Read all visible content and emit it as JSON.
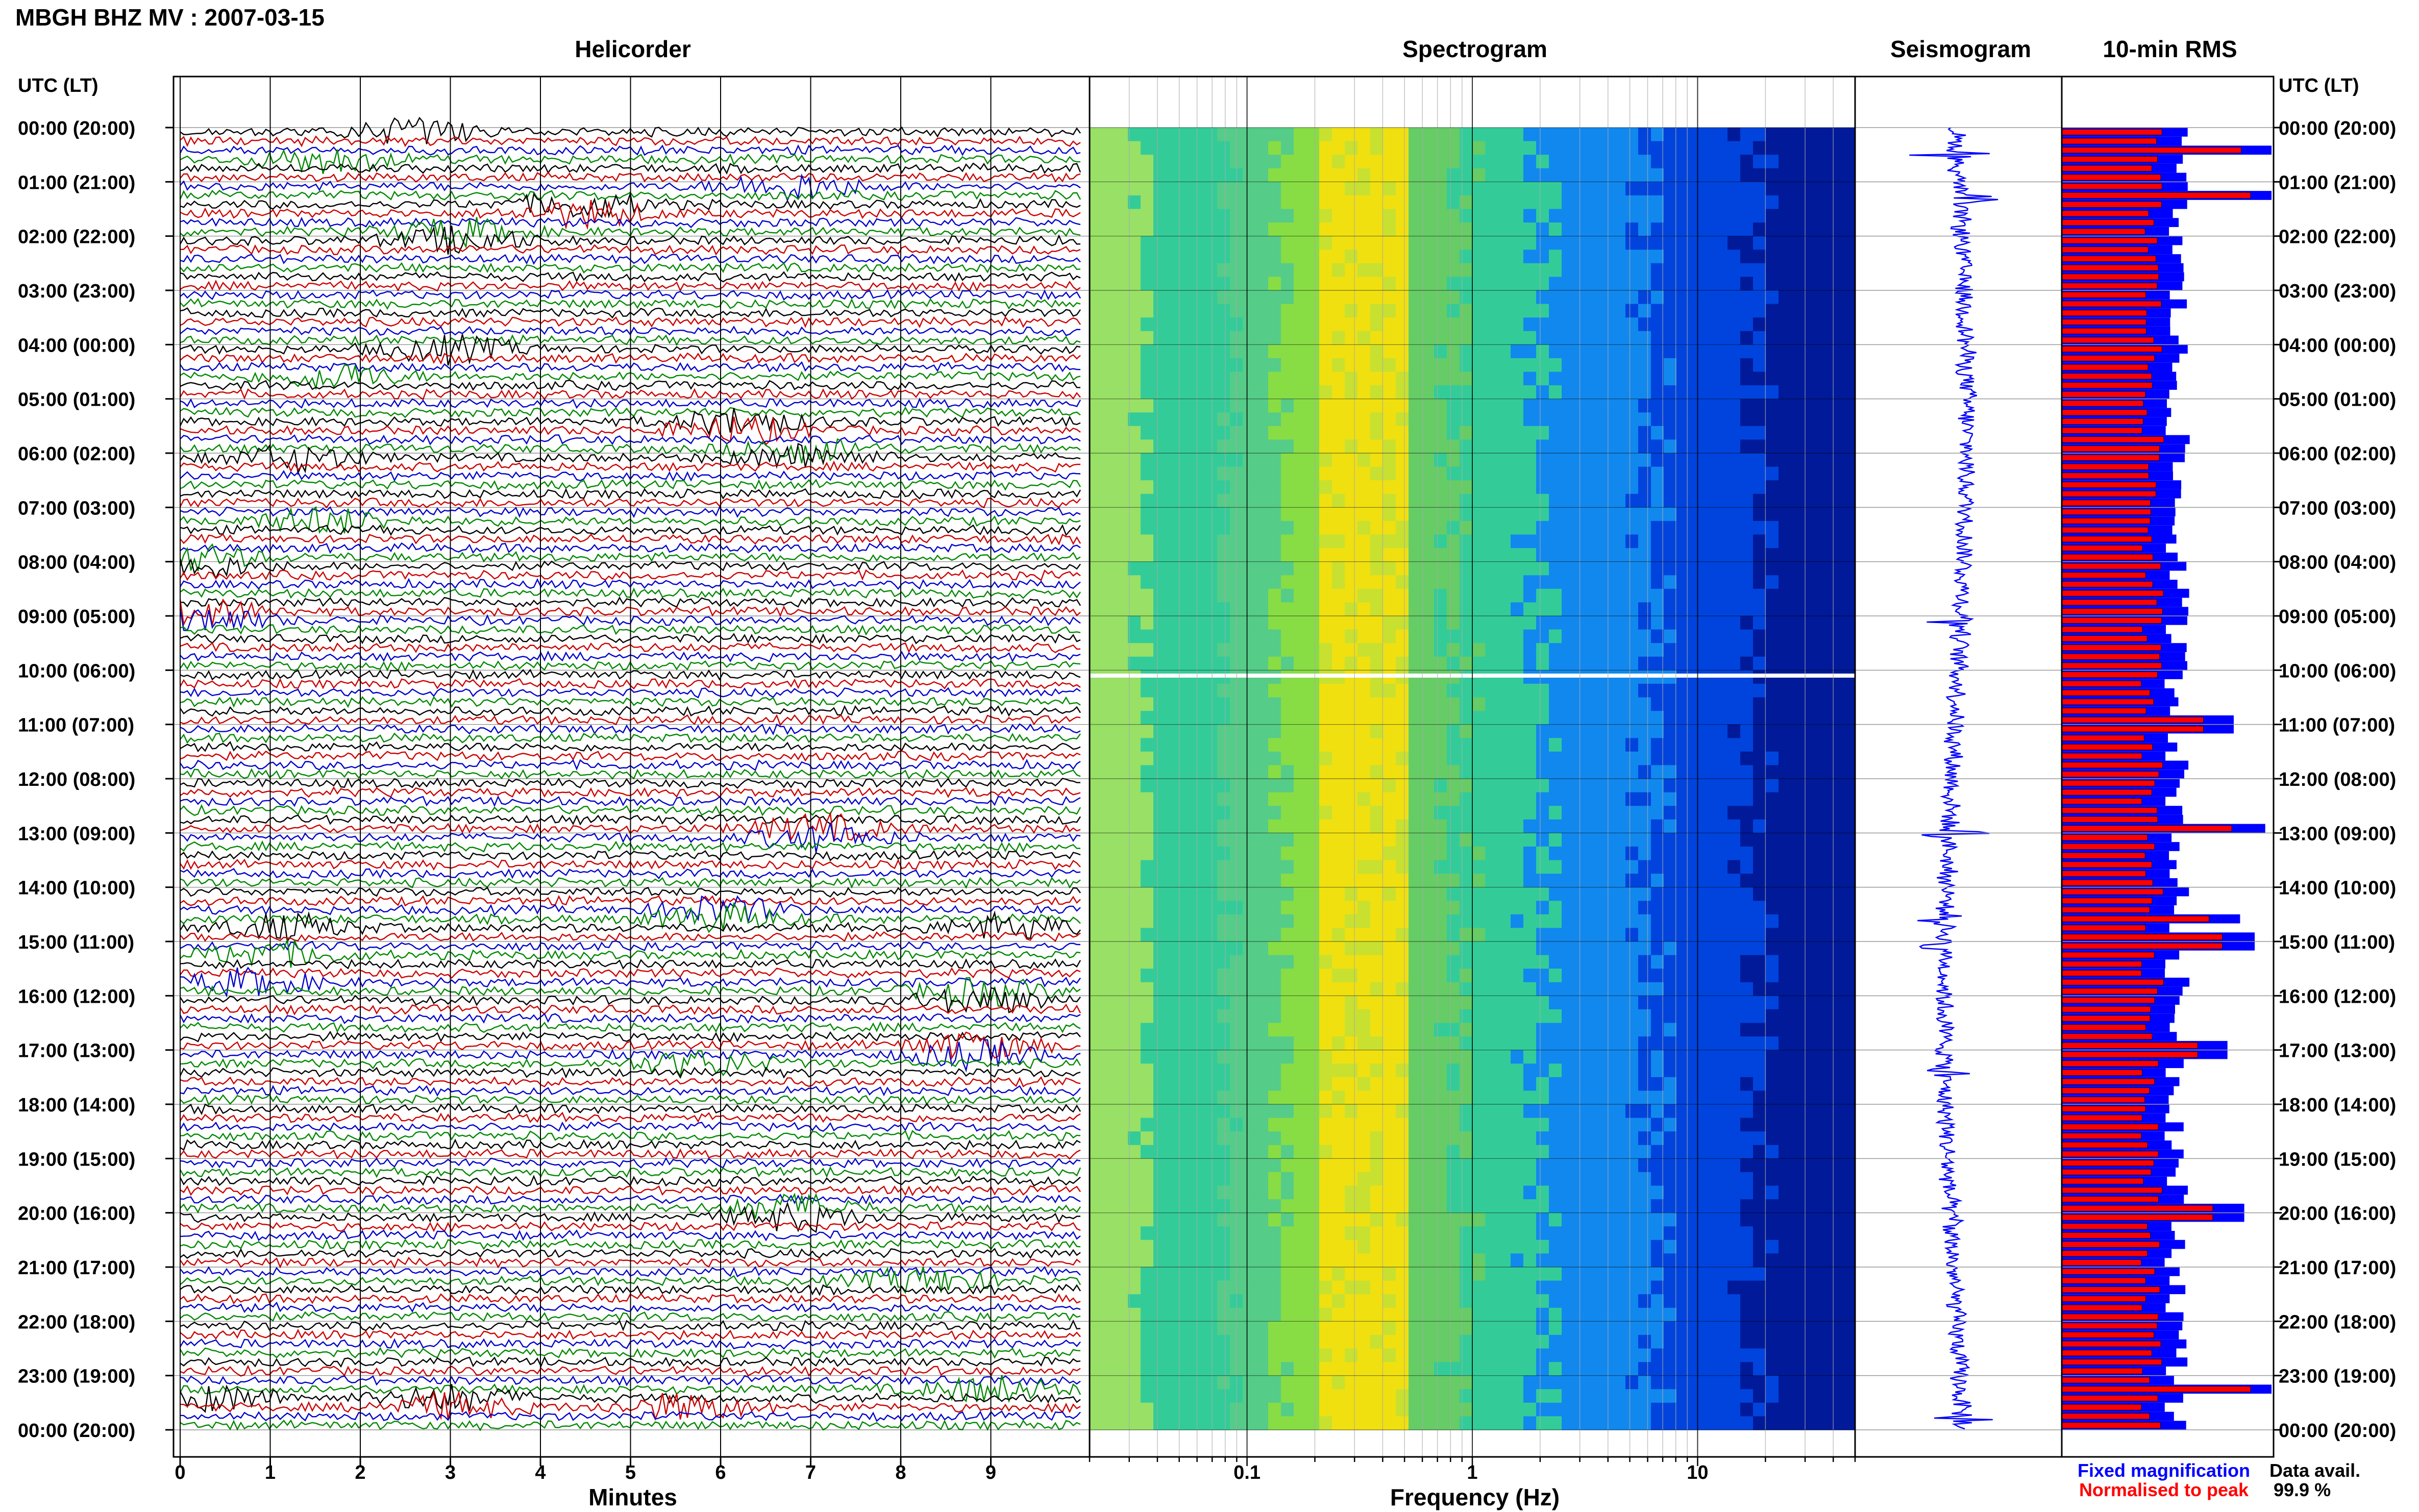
{
  "page_title": "MBGH BHZ MV : 2007-03-15",
  "legend": {
    "fixed": "Fixed magnification",
    "normalised": "Normalised to peak",
    "fixed_color": "#0000ff",
    "normalised_color": "#ff0000",
    "data_avail_label": "Data avail.",
    "data_avail_value": "99.9 %"
  },
  "chart_data": [
    {
      "type": "line",
      "title": "Helicorder",
      "xlabel": "Minutes",
      "ylabel": "UTC (LT)",
      "xlim": [
        0,
        10
      ],
      "x_ticks": [
        "0",
        "1",
        "2",
        "3",
        "4",
        "5",
        "6",
        "7",
        "8",
        "9"
      ],
      "y_ticks": [
        "00:00 (20:00)",
        "01:00 (21:00)",
        "02:00 (22:00)",
        "03:00 (23:00)",
        "04:00 (00:00)",
        "05:00 (01:00)",
        "06:00 (02:00)",
        "07:00 (03:00)",
        "08:00 (04:00)",
        "09:00 (05:00)",
        "10:00 (06:00)",
        "11:00 (07:00)",
        "12:00 (08:00)",
        "13:00 (09:00)",
        "14:00 (10:00)",
        "15:00 (11:00)",
        "16:00 (12:00)",
        "17:00 (13:00)",
        "18:00 (14:00)",
        "19:00 (15:00)",
        "20:00 (16:00)",
        "21:00 (17:00)",
        "22:00 (18:00)",
        "23:00 (19:00)",
        "00:00 (20:00)"
      ],
      "trace_colors": [
        "#000000",
        "#cc0000",
        "#0000cc",
        "#008800"
      ],
      "events": [
        {
          "hour": 0.6,
          "minute": 1.6,
          "color": "#000000"
        },
        {
          "hour": 0.1,
          "minute": 2.6,
          "color": "#cc0000"
        },
        {
          "hour": 1.1,
          "minute": 6.8,
          "color": "#008800"
        },
        {
          "hour": 1.5,
          "minute": 4.5,
          "color": "#cc0000"
        },
        {
          "hour": 2.0,
          "minute": 3.1,
          "color": "#000000"
        },
        {
          "hour": 4.1,
          "minute": 3.0,
          "color": "#cc0000"
        },
        {
          "hour": 4.6,
          "minute": 1.7,
          "color": "#000000"
        },
        {
          "hour": 5.5,
          "minute": 6.2,
          "color": "#cc0000"
        },
        {
          "hour": 6.0,
          "minute": 6.9,
          "color": "#000000"
        },
        {
          "hour": 6.1,
          "minute": 1.3,
          "color": "#cc0000"
        },
        {
          "hour": 7.2,
          "minute": 1.6,
          "color": "#008800"
        },
        {
          "hour": 8.0,
          "minute": 0.1,
          "color": "#000000"
        },
        {
          "hour": 9.0,
          "minute": 0.2,
          "color": "#0000cc"
        },
        {
          "hour": 13.0,
          "minute": 7.1,
          "color": "#000000"
        },
        {
          "hour": 14.5,
          "minute": 6.0,
          "color": "#008800"
        },
        {
          "hour": 14.8,
          "minute": 1.2,
          "color": "#cc0000"
        },
        {
          "hour": 14.7,
          "minute": 9.2,
          "color": "#000000"
        },
        {
          "hour": 15.3,
          "minute": 1.0,
          "color": "#000000"
        },
        {
          "hour": 15.8,
          "minute": 0.8,
          "color": "#000000"
        },
        {
          "hour": 16.0,
          "minute": 8.9,
          "color": "#000000"
        },
        {
          "hour": 17.0,
          "minute": 8.8,
          "color": "#0000cc"
        },
        {
          "hour": 17.3,
          "minute": 5.8,
          "color": "#000000"
        },
        {
          "hour": 20.0,
          "minute": 6.8,
          "color": "#000000"
        },
        {
          "hour": 21.2,
          "minute": 8.3,
          "color": "#008800"
        },
        {
          "hour": 23.3,
          "minute": 9.0,
          "color": "#008800"
        },
        {
          "hour": 23.4,
          "minute": 0.4,
          "color": "#000000"
        },
        {
          "hour": 23.5,
          "minute": 3.0,
          "color": "#000000"
        },
        {
          "hour": 23.6,
          "minute": 5.6,
          "color": "#cc0000"
        }
      ]
    },
    {
      "type": "heatmap",
      "title": "Spectrogram",
      "xlabel": "Frequency (Hz)",
      "x_scale": "log",
      "xlim": [
        0.02,
        50
      ],
      "x_ticks": [
        "0.1",
        "1",
        "10"
      ],
      "colormap": [
        "#99e066",
        "#33cc99",
        "#1188ee",
        "#0044dd",
        "#001a99"
      ],
      "peak_band_hz": [
        0.2,
        0.5
      ],
      "peak_color": "#f0e010",
      "gap_hour": 10.1
    },
    {
      "type": "line",
      "title": "Seismogram",
      "color": "#0000ff",
      "spikes_hour": [
        0.5,
        1.3,
        9.1,
        13.0,
        14.6,
        15.1,
        17.4,
        20.2,
        23.8
      ]
    },
    {
      "type": "bar",
      "title": "10-min RMS",
      "interval_minutes": 10,
      "count": 144,
      "series": [
        {
          "name": "Fixed magnification",
          "color": "#0000ff"
        },
        {
          "name": "Normalised to peak",
          "color": "#ff0000"
        }
      ],
      "peaks": [
        {
          "hour": 0.4,
          "value": 0.95
        },
        {
          "hour": 1.2,
          "value": 1.0
        },
        {
          "hour": 11.0,
          "value": 0.75
        },
        {
          "hour": 12.9,
          "value": 0.9
        },
        {
          "hour": 14.6,
          "value": 0.78
        },
        {
          "hour": 15.0,
          "value": 0.85
        },
        {
          "hour": 17.0,
          "value": 0.72
        },
        {
          "hour": 20.0,
          "value": 0.8
        },
        {
          "hour": 23.2,
          "value": 1.0
        }
      ]
    }
  ]
}
